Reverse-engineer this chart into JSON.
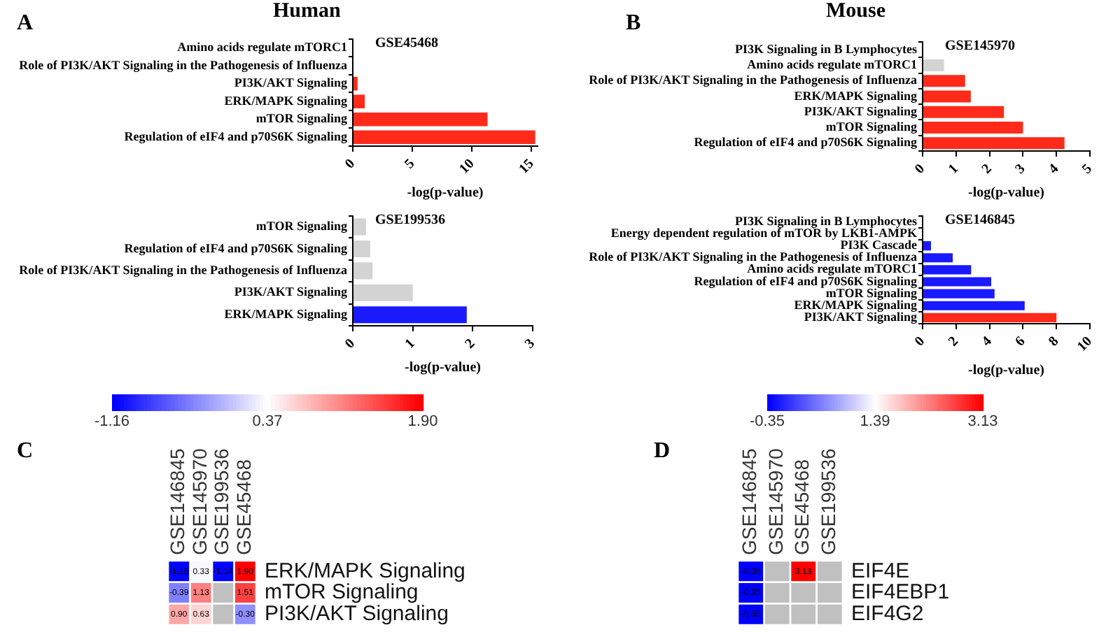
{
  "chart_data": [
    {
      "type": "bar",
      "orientation": "horizontal",
      "title": "GSE45468",
      "annotations": [
        "A",
        "Human"
      ],
      "categories": [
        "Amino acids regulate mTORC1",
        "Role of PI3K/AKT Signaling in the Pathogenesis of Influenza",
        "PI3K/AKT Signaling",
        "ERK/MAPK Signaling",
        "mTOR Signaling",
        "Regulation of eIF4 and p70S6K Signaling"
      ],
      "values": [
        0,
        0,
        0.4,
        1.0,
        11.3,
        15.3
      ],
      "colors": [
        "#d3d3d3",
        "#d3d3d3",
        "#ff2a1a",
        "#ff2a1a",
        "#ff2a1a",
        "#ff2a1a"
      ],
      "xlim": [
        0,
        15.5
      ],
      "xticks": [
        0,
        5,
        10,
        15
      ],
      "xlabel": "-log(p-value)"
    },
    {
      "type": "bar",
      "orientation": "horizontal",
      "title": "GSE145970",
      "annotations": [
        "B",
        "Mouse"
      ],
      "categories": [
        "PI3K Signaling in B Lymphocytes",
        "Amino acids regulate mTORC1",
        "Role of PI3K/AKT Signaling in the Pathogenesis of Influenza",
        "ERK/MAPK Signaling",
        "PI3K/AKT Signaling",
        "mTOR Signaling",
        "Regulation of eIF4 and p70S6K Signaling"
      ],
      "values": [
        0,
        0.64,
        1.27,
        1.44,
        2.43,
        3.0,
        4.24
      ],
      "colors": [
        "#d3d3d3",
        "#d3d3d3",
        "#ff2a1a",
        "#ff2a1a",
        "#ff2a1a",
        "#ff2a1a",
        "#ff2a1a"
      ],
      "xlim": [
        0,
        5
      ],
      "xticks": [
        0,
        1,
        2,
        3,
        4,
        5
      ],
      "xlabel": "-log(p-value)"
    },
    {
      "type": "bar",
      "orientation": "horizontal",
      "title": "GSE199536",
      "categories": [
        "mTOR Signaling",
        "Regulation of eIF4 and p70S6K Signaling",
        "Role of PI3K/AKT Signaling in the Pathogenesis of Influenza",
        "PI3K/AKT Signaling",
        "ERK/MAPK Signaling"
      ],
      "values": [
        0.22,
        0.29,
        0.33,
        1.0,
        1.9
      ],
      "colors": [
        "#d3d3d3",
        "#d3d3d3",
        "#d3d3d3",
        "#d3d3d3",
        "#1a1aff"
      ],
      "xlim": [
        0,
        3
      ],
      "xticks": [
        0,
        1,
        2,
        3
      ],
      "xlabel": "-log(p-value)"
    },
    {
      "type": "bar",
      "orientation": "horizontal",
      "title": "GSE146845",
      "categories": [
        "PI3K Signaling in B Lymphocytes",
        "Energy dependent regulation of mTOR by LKB1-AMPK",
        "PI3K Cascade",
        "Role of PI3K/AKT Signaling in the Pathogenesis of Influenza",
        "Amino acids regulate mTORC1",
        "Regulation of eIF4 and p70S6K Signaling",
        "mTOR Signaling",
        "ERK/MAPK Signaling",
        "PI3K/AKT Signaling"
      ],
      "values": [
        0,
        0,
        0.5,
        1.8,
        2.9,
        4.1,
        4.3,
        6.1,
        8.0
      ],
      "colors": [
        "#1a1aff",
        "#1a1aff",
        "#1a1aff",
        "#1a1aff",
        "#1a1aff",
        "#1a1aff",
        "#1a1aff",
        "#1a1aff",
        "#ff2a1a"
      ],
      "xlim": [
        0,
        10
      ],
      "xticks": [
        0,
        2,
        4,
        6,
        8,
        10
      ],
      "xlabel": "-log(p-value)"
    },
    {
      "type": "heatmap",
      "annotations": [
        "C"
      ],
      "categories": [
        "GSE146845",
        "GSE145970",
        "GSE199536",
        "GSE45468"
      ],
      "y_categories": [
        "ERK/MAPK Signaling",
        "mTOR Signaling",
        "PI3K/AKT Signaling"
      ],
      "cells": [
        [
          -1.15,
          0.33,
          -1.14,
          1.9
        ],
        [
          -0.39,
          1.13,
          null,
          1.51
        ],
        [
          0.9,
          0.63,
          null,
          -0.3
        ]
      ],
      "cell_labels": [
        [
          "-1.15",
          "0.33",
          "-1.14",
          "1.90"
        ],
        [
          "-0.39",
          "1.13",
          null,
          "1.51"
        ],
        [
          "0.90",
          "0.63",
          null,
          "-0.30"
        ]
      ],
      "clim": [
        -1.16,
        1.9
      ],
      "cticks": [
        {
          "value": -1.16,
          "label": "-1.16"
        },
        {
          "value": 0.37,
          "label": "0.37"
        },
        {
          "value": 1.9,
          "label": "1.90"
        }
      ]
    },
    {
      "type": "heatmap",
      "annotations": [
        "D"
      ],
      "categories": [
        "GSE146845",
        "GSE145970",
        "GSE45468",
        "GSE199536"
      ],
      "y_categories": [
        "EIF4E",
        "EIF4EBP1",
        "EIF4G2"
      ],
      "cells": [
        [
          -0.35,
          null,
          3.13,
          null
        ],
        [
          -0.35,
          null,
          null,
          null
        ],
        [
          -0.35,
          null,
          null,
          null
        ]
      ],
      "cell_labels": [
        [
          "-0.35",
          null,
          "3.13",
          null
        ],
        [
          "-0.35",
          null,
          null,
          null
        ],
        [
          "-0.35",
          null,
          null,
          null
        ]
      ],
      "clim": [
        -0.35,
        3.13
      ],
      "cticks": [
        -0.35,
        1.39,
        3.13
      ]
    }
  ]
}
